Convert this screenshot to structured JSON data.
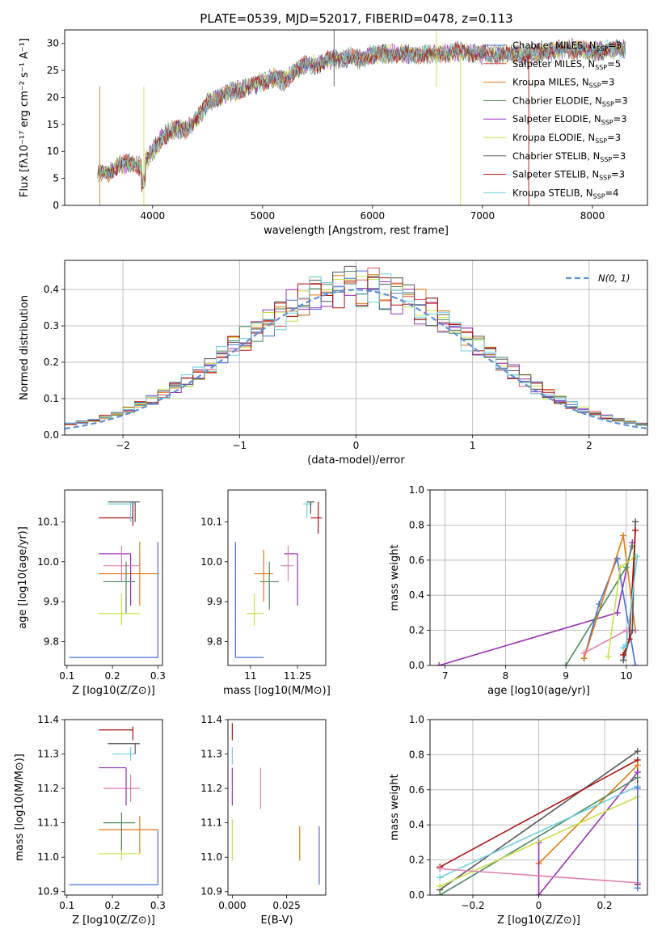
{
  "figure_title": "PLATE=0539, MJD=52017, FIBERID=0478, z=0.113",
  "colors": {
    "chabrier_miles": "#4a6fd8",
    "salpeter_miles": "#d85a5a",
    "kroupa_miles": "#e07b10",
    "chabrier_elodie": "#4e8a5e",
    "salpeter_elodie": "#9b30b8",
    "kroupa_elodie": "#c9e04a",
    "chabrier_stelib": "#555555",
    "salpeter_stelib": "#b01010",
    "kroupa_stelib": "#6fd0e0",
    "pink": "#e080b0",
    "gauss": "#5f8fd8",
    "grid": "#b0b0b0"
  },
  "legend_spectrum": [
    {
      "text": "Chabrier MILES, N",
      "sub": "SSP",
      "tail": "=3",
      "color": "chabrier_miles"
    },
    {
      "text": "Salpeter MILES, N",
      "sub": "SSP",
      "tail": "=5",
      "color": "salpeter_miles"
    },
    {
      "text": "Kroupa MILES, N",
      "sub": "SSP",
      "tail": "=3",
      "color": "kroupa_miles"
    },
    {
      "text": "Chabrier ELODIE, N",
      "sub": "SSP",
      "tail": "=3",
      "color": "chabrier_elodie"
    },
    {
      "text": "Salpeter ELODIE, N",
      "sub": "SSP",
      "tail": "=3",
      "color": "salpeter_elodie"
    },
    {
      "text": "Kroupa ELODIE, N",
      "sub": "SSP",
      "tail": "=3",
      "color": "kroupa_elodie"
    },
    {
      "text": "Chabrier STELIB, N",
      "sub": "SSP",
      "tail": "=3",
      "color": "chabrier_stelib"
    },
    {
      "text": "Salpeter STELIB, N",
      "sub": "SSP",
      "tail": "=3",
      "color": "salpeter_stelib"
    },
    {
      "text": "Kroupa STELIB, N",
      "sub": "SSP",
      "tail": "=4",
      "color": "kroupa_stelib"
    }
  ],
  "chart_data": [
    {
      "id": "spectrum",
      "type": "line",
      "xlabel": "wavelength [Angstrom, rest frame]",
      "ylabel": "Flux [fλ10⁻¹⁷ erg cm⁻² s⁻¹ A⁻¹]",
      "xlim": [
        3200,
        8500
      ],
      "ylim": [
        0,
        32.5
      ],
      "xticks": [
        4000,
        5000,
        6000,
        7000,
        8000
      ],
      "yticks": [
        0,
        5,
        10,
        15,
        20,
        25,
        30
      ],
      "envelope_x": [
        3500,
        3600,
        3700,
        3800,
        3900,
        4000,
        4100,
        4200,
        4300,
        4400,
        4500,
        4600,
        4700,
        4800,
        4900,
        5000,
        5100,
        5200,
        5300,
        5400,
        5500,
        5600,
        5700,
        5800,
        5900,
        6000,
        6200,
        6400,
        6600,
        6800,
        7000,
        7200,
        7400,
        7600,
        7800,
        8000,
        8200,
        8300
      ],
      "envelope_y": [
        6,
        6,
        7.5,
        8,
        7,
        10,
        13,
        14,
        14,
        16,
        19,
        20,
        21,
        21.5,
        22,
        23,
        23.5,
        23,
        25,
        26,
        26,
        27,
        27,
        27.5,
        27,
        28,
        28,
        28,
        28,
        28.5,
        28,
        28,
        28,
        28.5,
        29,
        28.5,
        29,
        29
      ],
      "grid": false
    },
    {
      "id": "residuals",
      "type": "histogram",
      "xlabel": "(data-model)/error",
      "ylabel": "Normed distribution",
      "xlim": [
        -2.5,
        2.5
      ],
      "ylim": [
        0,
        0.48
      ],
      "xticks": [
        -2,
        -1,
        0,
        1,
        2
      ],
      "yticks": [
        0.0,
        0.1,
        0.2,
        0.3,
        0.4
      ],
      "bin_width": 0.1,
      "legend": "N(0, 1)",
      "reference": "gaussian N(0,1)",
      "grid": true
    },
    {
      "id": "age_vs_Z",
      "type": "errorbar",
      "xlabel": "Z [log10(Z/Z⊙)]",
      "ylabel": "age  [log10(age/yr)]",
      "xlim": [
        0.095,
        0.31
      ],
      "ylim": [
        9.74,
        10.18
      ],
      "xticks": [
        0.1,
        0.2,
        0.3
      ],
      "yticks": [
        9.8,
        9.9,
        10.0,
        10.1
      ],
      "points": [
        {
          "c": "chabrier_miles",
          "x": 0.3,
          "xl": 0.105,
          "xh": 0.3,
          "y": 9.76,
          "yl": 9.76,
          "yh": 10.05
        },
        {
          "c": "kroupa_miles",
          "x": 0.26,
          "xl": 0.17,
          "xh": 0.3,
          "y": 9.97,
          "yl": 9.89,
          "yh": 10.05
        },
        {
          "c": "salpeter_elodie",
          "x": 0.24,
          "xl": 0.17,
          "xh": 0.24,
          "y": 10.02,
          "yl": 9.89,
          "yh": 10.02
        },
        {
          "c": "pink",
          "x": 0.22,
          "xl": 0.18,
          "xh": 0.26,
          "y": 9.99,
          "yl": 9.95,
          "yh": 10.04
        },
        {
          "c": "chabrier_elodie",
          "x": 0.23,
          "xl": 0.18,
          "xh": 0.25,
          "y": 9.95,
          "yl": 9.87,
          "yh": 10.0
        },
        {
          "c": "kroupa_elodie",
          "x": 0.22,
          "xl": 0.17,
          "xh": 0.26,
          "y": 9.87,
          "yl": 9.84,
          "yh": 9.92
        },
        {
          "c": "salpeter_stelib",
          "x": 0.245,
          "xl": 0.17,
          "xh": 0.245,
          "y": 10.11,
          "yl": 10.09,
          "yh": 10.15
        },
        {
          "c": "kroupa_stelib",
          "x": 0.24,
          "xl": 0.19,
          "xh": 0.25,
          "y": 10.145,
          "yl": 10.1,
          "yh": 10.15
        },
        {
          "c": "chabrier_stelib",
          "x": 0.25,
          "xl": 0.19,
          "xh": 0.26,
          "y": 10.15,
          "yl": 10.1,
          "yh": 10.15
        }
      ]
    },
    {
      "id": "age_vs_mass",
      "type": "errorbar",
      "xlabel": "mass [log10(M/M⊙)]",
      "ylabel": "",
      "xlim": [
        10.88,
        11.4
      ],
      "ylim": [
        9.74,
        10.18
      ],
      "xticks": [
        11.0,
        11.25
      ],
      "yticks": [
        9.8,
        9.9,
        10.0,
        10.1
      ],
      "points": [
        {
          "c": "chabrier_miles",
          "x": 10.92,
          "xl": 10.92,
          "xh": 11.07,
          "y": 9.76,
          "yl": 9.76,
          "yh": 10.05
        },
        {
          "c": "kroupa_miles",
          "x": 11.07,
          "xl": 11.02,
          "xh": 11.12,
          "y": 9.97,
          "yl": 9.9,
          "yh": 10.03
        },
        {
          "c": "chabrier_elodie",
          "x": 11.1,
          "xl": 11.05,
          "xh": 11.15,
          "y": 9.95,
          "yl": 9.88,
          "yh": 10.0
        },
        {
          "c": "kroupa_elodie",
          "x": 11.02,
          "xl": 10.98,
          "xh": 11.07,
          "y": 9.87,
          "yl": 9.84,
          "yh": 9.92
        },
        {
          "c": "salpeter_elodie",
          "x": 11.25,
          "xl": 11.18,
          "xh": 11.25,
          "y": 10.02,
          "yl": 9.89,
          "yh": 10.02
        },
        {
          "c": "pink",
          "x": 11.2,
          "xl": 11.16,
          "xh": 11.23,
          "y": 9.99,
          "yl": 9.95,
          "yh": 10.04
        },
        {
          "c": "salpeter_stelib",
          "x": 11.36,
          "xl": 11.32,
          "xh": 11.38,
          "y": 10.11,
          "yl": 10.07,
          "yh": 10.15
        },
        {
          "c": "kroupa_stelib",
          "x": 11.3,
          "xl": 11.28,
          "xh": 11.33,
          "y": 10.145,
          "yl": 10.11,
          "yh": 10.15
        },
        {
          "c": "chabrier_stelib",
          "x": 11.32,
          "xl": 11.3,
          "xh": 11.34,
          "y": 10.15,
          "yl": 10.12,
          "yh": 10.15
        }
      ]
    },
    {
      "id": "weight_vs_age",
      "type": "line",
      "xlabel": "age  [log10(age/yr)]",
      "ylabel": "mass weight",
      "xlim": [
        6.75,
        10.35
      ],
      "ylim": [
        0,
        1.0
      ],
      "xticks": [
        7,
        8,
        9,
        10
      ],
      "yticks": [
        0.0,
        0.2,
        0.4,
        0.6,
        0.8,
        1.0
      ],
      "grid": true,
      "series": [
        {
          "c": "salpeter_elodie",
          "x": [
            6.9,
            9.85,
            10.1
          ],
          "y": [
            0.0,
            0.3,
            0.7
          ]
        },
        {
          "c": "chabrier_miles",
          "x": [
            9.3,
            9.55,
            9.85,
            10.15
          ],
          "y": [
            0.04,
            0.35,
            0.61,
            0.0
          ]
        },
        {
          "c": "kroupa_miles",
          "x": [
            9.3,
            9.95,
            10.15
          ],
          "y": [
            0.04,
            0.74,
            0.2
          ]
        },
        {
          "c": "pink",
          "x": [
            9.3,
            10.0,
            10.15
          ],
          "y": [
            0.07,
            0.2,
            0.2
          ]
        },
        {
          "c": "chabrier_elodie",
          "x": [
            9.0,
            10.0,
            10.1
          ],
          "y": [
            0.0,
            0.56,
            0.68
          ]
        },
        {
          "c": "kroupa_elodie",
          "x": [
            9.7,
            9.9,
            10.15
          ],
          "y": [
            0.05,
            0.56,
            0.62
          ]
        },
        {
          "c": "chabrier_stelib",
          "x": [
            9.95,
            10.1,
            10.15
          ],
          "y": [
            0.03,
            0.2,
            0.82
          ]
        },
        {
          "c": "salpeter_stelib",
          "x": [
            9.95,
            10.05,
            10.15
          ],
          "y": [
            0.06,
            0.15,
            0.77
          ]
        },
        {
          "c": "kroupa_stelib",
          "x": [
            9.95,
            10.0,
            10.18
          ],
          "y": [
            0.1,
            0.12,
            0.62
          ]
        }
      ]
    },
    {
      "id": "mass_vs_Z",
      "type": "errorbar",
      "xlabel": "Z [log10(Z/Z⊙)]",
      "ylabel": "mass [log10(M/M⊙)]",
      "xlim": [
        0.095,
        0.31
      ],
      "ylim": [
        10.89,
        11.4
      ],
      "xticks": [
        0.1,
        0.2,
        0.3
      ],
      "yticks": [
        10.9,
        11.0,
        11.1,
        11.2,
        11.3,
        11.4
      ],
      "points": [
        {
          "c": "chabrier_miles",
          "x": 0.3,
          "xl": 0.105,
          "xh": 0.3,
          "y": 10.92,
          "yl": 10.92,
          "yh": 11.08
        },
        {
          "c": "kroupa_miles",
          "x": 0.26,
          "xl": 0.17,
          "xh": 0.3,
          "y": 11.08,
          "yl": 11.01,
          "yh": 11.12
        },
        {
          "c": "kroupa_elodie",
          "x": 0.22,
          "xl": 0.17,
          "xh": 0.26,
          "y": 11.01,
          "yl": 10.99,
          "yh": 11.06
        },
        {
          "c": "chabrier_elodie",
          "x": 0.22,
          "xl": 0.18,
          "xh": 0.25,
          "y": 11.1,
          "yl": 11.02,
          "yh": 11.13
        },
        {
          "c": "pink",
          "x": 0.24,
          "xl": 0.18,
          "xh": 0.26,
          "y": 11.2,
          "yl": 11.16,
          "yh": 11.24
        },
        {
          "c": "salpeter_elodie",
          "x": 0.23,
          "xl": 0.17,
          "xh": 0.23,
          "y": 11.26,
          "yl": 11.15,
          "yh": 11.26
        },
        {
          "c": "kroupa_stelib",
          "x": 0.24,
          "xl": 0.2,
          "xh": 0.25,
          "y": 11.3,
          "yl": 11.28,
          "yh": 11.32
        },
        {
          "c": "chabrier_stelib",
          "x": 0.25,
          "xl": 0.19,
          "xh": 0.26,
          "y": 11.33,
          "yl": 11.3,
          "yh": 11.33
        },
        {
          "c": "salpeter_stelib",
          "x": 0.245,
          "xl": 0.17,
          "xh": 0.245,
          "y": 11.37,
          "yl": 11.34,
          "yh": 11.38
        }
      ]
    },
    {
      "id": "mass_vs_ebv",
      "type": "errorbar",
      "xlabel": "E(B-V)",
      "ylabel": "",
      "xlim": [
        -0.002,
        0.043
      ],
      "ylim": [
        10.89,
        11.4
      ],
      "xticks": [
        0.0,
        0.025
      ],
      "xticklabels": [
        "0.000",
        "0.025"
      ],
      "yticks": [
        10.9,
        11.0,
        11.1,
        11.2,
        11.3,
        11.4
      ],
      "points": [
        {
          "c": "chabrier_miles",
          "x": 0.04,
          "y": 11.0,
          "yl": 10.92,
          "yh": 11.09
        },
        {
          "c": "kroupa_miles",
          "x": 0.031,
          "y": 11.04,
          "yl": 10.99,
          "yh": 11.09
        },
        {
          "c": "pink",
          "x": 0.013,
          "y": 11.2,
          "yl": 11.14,
          "yh": 11.26
        },
        {
          "c": "kroupa_elodie",
          "x": 0.0,
          "y": 11.05,
          "yl": 10.99,
          "yh": 11.11
        },
        {
          "c": "salpeter_elodie",
          "x": 0.0,
          "y": 11.2,
          "yl": 11.15,
          "yh": 11.26
        },
        {
          "c": "kroupa_stelib",
          "x": 0.0,
          "y": 11.3,
          "yl": 11.27,
          "yh": 11.32
        },
        {
          "c": "salpeter_stelib",
          "x": 0.0,
          "y": 11.36,
          "yl": 11.34,
          "yh": 11.39
        }
      ]
    },
    {
      "id": "weight_vs_Z",
      "type": "line",
      "xlabel": "Z [log10(Z/Z⊙)]",
      "ylabel": "mass weight",
      "xlim": [
        -0.33,
        0.33
      ],
      "ylim": [
        0,
        1.0
      ],
      "xticks": [
        -0.2,
        0.0,
        0.2
      ],
      "yticks": [
        0.0,
        0.2,
        0.4,
        0.6,
        0.8,
        1.0
      ],
      "grid": true,
      "series": [
        {
          "c": "chabrier_stelib",
          "x": [
            -0.3,
            0.3
          ],
          "y": [
            0.03,
            0.82
          ]
        },
        {
          "c": "salpeter_stelib",
          "x": [
            -0.3,
            0.3,
            0.3
          ],
          "y": [
            0.16,
            0.77,
            0.06
          ]
        },
        {
          "c": "kroupa_miles",
          "x": [
            0.0,
            0.3
          ],
          "y": [
            0.18,
            0.74
          ]
        },
        {
          "c": "salpeter_elodie",
          "x": [
            0.0,
            0.0,
            0.3
          ],
          "y": [
            0.3,
            0.0,
            0.7
          ]
        },
        {
          "c": "chabrier_elodie",
          "x": [
            -0.3,
            0.3
          ],
          "y": [
            0.0,
            0.67
          ]
        },
        {
          "c": "kroupa_stelib",
          "x": [
            -0.3,
            0.3
          ],
          "y": [
            0.1,
            0.62
          ]
        },
        {
          "c": "kroupa_elodie",
          "x": [
            -0.3,
            0.3
          ],
          "y": [
            0.05,
            0.56
          ]
        },
        {
          "c": "pink",
          "x": [
            -0.3,
            0.3
          ],
          "y": [
            0.15,
            0.07
          ]
        },
        {
          "c": "chabrier_miles",
          "x": [
            0.3,
            0.3
          ],
          "y": [
            0.04,
            0.61
          ]
        }
      ]
    }
  ]
}
